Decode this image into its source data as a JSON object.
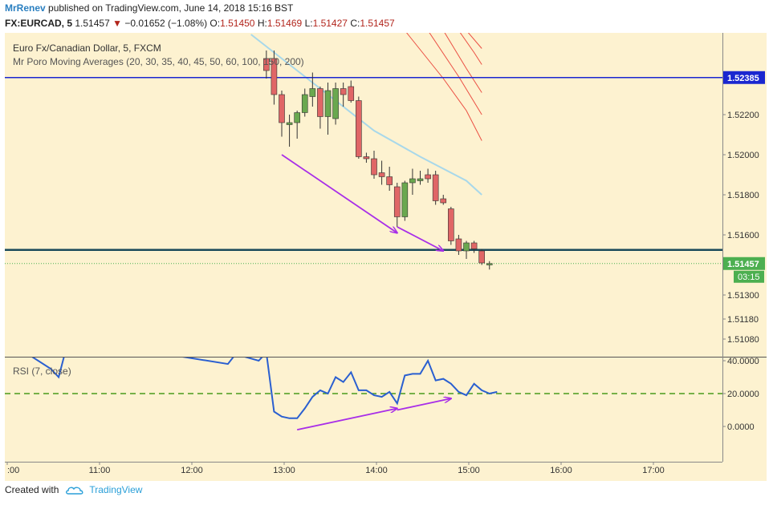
{
  "header": {
    "author": "MrRenev",
    "published_text": "published on TradingView.com, June 14, 2018 15:16 BST",
    "symbol": "FX:EURCAD, 5",
    "last": "1.51457",
    "change_arrow": "▼",
    "change": "−0.01652 (−1.08%)",
    "o_label": "O:",
    "o_value": "1.51450",
    "h_label": "H:",
    "h_value": "1.51469",
    "l_label": "L:",
    "l_value": "1.51427",
    "c_label": "C:",
    "c_value": "1.51457"
  },
  "legend": {
    "title": "Euro Fx/Canadian Dollar, 5, FXCM",
    "indicator": "Mr Poro Moving Averages (20, 30, 35, 40, 45, 50, 60, 100, 150, 200)",
    "rsi": "RSI (7, close)"
  },
  "footer": {
    "created_with": "Created with",
    "brand": "TradingView"
  },
  "colors": {
    "background": "#fdf2d0",
    "bull": "#6aa84f",
    "bear": "#e06666",
    "level_line": "#1a27d0",
    "support_line": "#1a4a5a",
    "rsi_line": "#2a5fd0",
    "rsi_level": "#4a9a1a",
    "arrow": "#a82ee8",
    "ma_light": "#a8d8ea",
    "ma_red": "#e8322a",
    "price_badge": "#4caf50"
  },
  "chart_data": {
    "type": "candlestick",
    "timeframe": "5",
    "price_axis": {
      "ticks": [
        "1.52200",
        "1.52000",
        "1.51800",
        "1.51600",
        "1.51300",
        "1.51180",
        "1.51080"
      ],
      "tick_values": [
        1.522,
        1.52,
        1.518,
        1.516,
        1.513,
        1.5118,
        1.5108
      ],
      "level_label": "1.52385",
      "level_value": 1.52385,
      "current_label": "1.51457",
      "current_value": 1.51457,
      "countdown": "03:15"
    },
    "time_axis": {
      "ticks": [
        ":00",
        "11:00",
        "12:00",
        "13:00",
        "14:00",
        "15:00",
        "16:00",
        "17:00"
      ]
    },
    "rsi_axis": {
      "ticks": [
        "40.0000",
        "20.0000",
        "0.0000"
      ],
      "tick_values": [
        40,
        20,
        0
      ],
      "level": 20
    },
    "candles": [
      {
        "time": "12:50",
        "open": 1.5248,
        "high": 1.5252,
        "low": 1.5238,
        "close": 1.5242
      },
      {
        "time": "12:55",
        "open": 1.5248,
        "high": 1.5252,
        "low": 1.5225,
        "close": 1.523
      },
      {
        "time": "13:00",
        "open": 1.523,
        "high": 1.5232,
        "low": 1.5209,
        "close": 1.5216
      },
      {
        "time": "13:05",
        "open": 1.5215,
        "high": 1.522,
        "low": 1.5204,
        "close": 1.5216
      },
      {
        "time": "13:10",
        "open": 1.5216,
        "high": 1.5222,
        "low": 1.5208,
        "close": 1.5221
      },
      {
        "time": "13:15",
        "open": 1.5221,
        "high": 1.5233,
        "low": 1.5219,
        "close": 1.523
      },
      {
        "time": "13:20",
        "open": 1.5229,
        "high": 1.5241,
        "low": 1.5224,
        "close": 1.5233
      },
      {
        "time": "13:25",
        "open": 1.5233,
        "high": 1.5234,
        "low": 1.5213,
        "close": 1.5219
      },
      {
        "time": "13:30",
        "open": 1.5219,
        "high": 1.5236,
        "low": 1.521,
        "close": 1.5232
      },
      {
        "time": "13:35",
        "open": 1.5218,
        "high": 1.5236,
        "low": 1.5215,
        "close": 1.5233
      },
      {
        "time": "13:40",
        "open": 1.5233,
        "high": 1.5236,
        "low": 1.5224,
        "close": 1.523
      },
      {
        "time": "13:45",
        "open": 1.5234,
        "high": 1.5237,
        "low": 1.5226,
        "close": 1.5227
      },
      {
        "time": "13:50",
        "open": 1.5227,
        "high": 1.5229,
        "low": 1.5198,
        "close": 1.5199
      },
      {
        "time": "13:55",
        "open": 1.5199,
        "high": 1.5201,
        "low": 1.5196,
        "close": 1.5198
      },
      {
        "time": "14:00",
        "open": 1.5198,
        "high": 1.5202,
        "low": 1.5188,
        "close": 1.519
      },
      {
        "time": "14:05",
        "open": 1.5191,
        "high": 1.5197,
        "low": 1.5185,
        "close": 1.5189
      },
      {
        "time": "14:10",
        "open": 1.5189,
        "high": 1.5194,
        "low": 1.5182,
        "close": 1.5185
      },
      {
        "time": "14:15",
        "open": 1.5184,
        "high": 1.5186,
        "low": 1.5164,
        "close": 1.5169
      },
      {
        "time": "14:20",
        "open": 1.5169,
        "high": 1.5187,
        "low": 1.5167,
        "close": 1.5186
      },
      {
        "time": "14:25",
        "open": 1.5186,
        "high": 1.5193,
        "low": 1.518,
        "close": 1.5188
      },
      {
        "time": "14:30",
        "open": 1.5187,
        "high": 1.5192,
        "low": 1.5185,
        "close": 1.5188
      },
      {
        "time": "14:35",
        "open": 1.519,
        "high": 1.5193,
        "low": 1.5186,
        "close": 1.5188
      },
      {
        "time": "14:40",
        "open": 1.519,
        "high": 1.5192,
        "low": 1.5175,
        "close": 1.5177
      },
      {
        "time": "14:45",
        "open": 1.5178,
        "high": 1.518,
        "low": 1.5175,
        "close": 1.5176
      },
      {
        "time": "14:50",
        "open": 1.5173,
        "high": 1.5174,
        "low": 1.5155,
        "close": 1.5157
      },
      {
        "time": "14:55",
        "open": 1.5158,
        "high": 1.516,
        "low": 1.515,
        "close": 1.5152
      },
      {
        "time": "15:00",
        "open": 1.5152,
        "high": 1.5157,
        "low": 1.5148,
        "close": 1.5156
      },
      {
        "time": "15:05",
        "open": 1.5156,
        "high": 1.5157,
        "low": 1.5151,
        "close": 1.5153
      },
      {
        "time": "15:10",
        "open": 1.5152,
        "high": 1.5153,
        "low": 1.5145,
        "close": 1.5146
      },
      {
        "time": "15:15",
        "open": 1.5145,
        "high": 1.51469,
        "low": 1.51427,
        "close": 1.51457
      }
    ],
    "horizontal_lines": [
      {
        "name": "resistance",
        "value": 1.52385
      },
      {
        "name": "support",
        "value": 1.51525
      }
    ],
    "moving_averages": [
      {
        "name": "ma-light",
        "points": [
          [
            "12:40",
            1.526
          ],
          [
            "13:00",
            1.5248
          ],
          [
            "13:30",
            1.523
          ],
          [
            "14:00",
            1.5212
          ],
          [
            "14:30",
            1.5199
          ],
          [
            "15:00",
            1.5187
          ],
          [
            "15:10",
            1.518
          ]
        ]
      },
      {
        "name": "ma-red-1",
        "points": [
          [
            "14:20",
            1.5262
          ],
          [
            "14:45",
            1.5238
          ],
          [
            "15:00",
            1.5222
          ],
          [
            "15:10",
            1.5207
          ]
        ]
      },
      {
        "name": "ma-red-2",
        "points": [
          [
            "14:35",
            1.5262
          ],
          [
            "14:55",
            1.5239
          ],
          [
            "15:10",
            1.522
          ]
        ]
      },
      {
        "name": "ma-red-3",
        "points": [
          [
            "14:45",
            1.5262
          ],
          [
            "15:00",
            1.5243
          ],
          [
            "15:10",
            1.5231
          ]
        ]
      },
      {
        "name": "ma-red-4",
        "points": [
          [
            "14:55",
            1.5262
          ],
          [
            "15:05",
            1.5251
          ],
          [
            "15:10",
            1.5245
          ]
        ]
      },
      {
        "name": "ma-red-5",
        "points": [
          [
            "15:00",
            1.5262
          ],
          [
            "15:10",
            1.5253
          ]
        ]
      }
    ],
    "rsi": [
      {
        "time": "10:00",
        "value": 46
      },
      {
        "time": "10:15",
        "value": 44
      },
      {
        "time": "10:30",
        "value": 35
      },
      {
        "time": "10:35",
        "value": 30
      },
      {
        "time": "10:40",
        "value": 48
      },
      {
        "time": "11:45",
        "value": 44
      },
      {
        "time": "12:25",
        "value": 38
      },
      {
        "time": "12:30",
        "value": 44
      },
      {
        "time": "12:45",
        "value": 40
      },
      {
        "time": "12:50",
        "value": 45
      },
      {
        "time": "12:55",
        "value": 9
      },
      {
        "time": "13:00",
        "value": 6
      },
      {
        "time": "13:05",
        "value": 5
      },
      {
        "time": "13:10",
        "value": 5
      },
      {
        "time": "13:15",
        "value": 11
      },
      {
        "time": "13:20",
        "value": 18
      },
      {
        "time": "13:25",
        "value": 22
      },
      {
        "time": "13:30",
        "value": 20
      },
      {
        "time": "13:35",
        "value": 30
      },
      {
        "time": "13:40",
        "value": 27
      },
      {
        "time": "13:45",
        "value": 33
      },
      {
        "time": "13:50",
        "value": 22
      },
      {
        "time": "13:55",
        "value": 22
      },
      {
        "time": "14:00",
        "value": 19
      },
      {
        "time": "14:05",
        "value": 18
      },
      {
        "time": "14:10",
        "value": 21
      },
      {
        "time": "14:15",
        "value": 14
      },
      {
        "time": "14:20",
        "value": 31
      },
      {
        "time": "14:25",
        "value": 32
      },
      {
        "time": "14:30",
        "value": 32
      },
      {
        "time": "14:35",
        "value": 40
      },
      {
        "time": "14:40",
        "value": 28
      },
      {
        "time": "14:45",
        "value": 29
      },
      {
        "time": "14:50",
        "value": 26
      },
      {
        "time": "14:55",
        "value": 21
      },
      {
        "time": "15:00",
        "value": 19
      },
      {
        "time": "15:05",
        "value": 26
      },
      {
        "time": "15:10",
        "value": 22
      },
      {
        "time": "15:15",
        "value": 20
      },
      {
        "time": "15:20",
        "value": 21
      }
    ],
    "annotations": [
      {
        "name": "price-arrow-1",
        "pane": "price",
        "from": [
          "13:00",
          1.52
        ],
        "to": [
          "14:15",
          1.5161
        ]
      },
      {
        "name": "price-arrow-2",
        "pane": "price",
        "from": [
          "14:15",
          1.5164
        ],
        "to": [
          "14:45",
          1.5152
        ]
      },
      {
        "name": "rsi-arrow-1",
        "pane": "rsi",
        "from": [
          "13:10",
          -2
        ],
        "to": [
          "14:15",
          11
        ]
      },
      {
        "name": "rsi-arrow-2",
        "pane": "rsi",
        "from": [
          "14:15",
          10
        ],
        "to": [
          "14:50",
          17
        ]
      }
    ],
    "grid": false
  }
}
